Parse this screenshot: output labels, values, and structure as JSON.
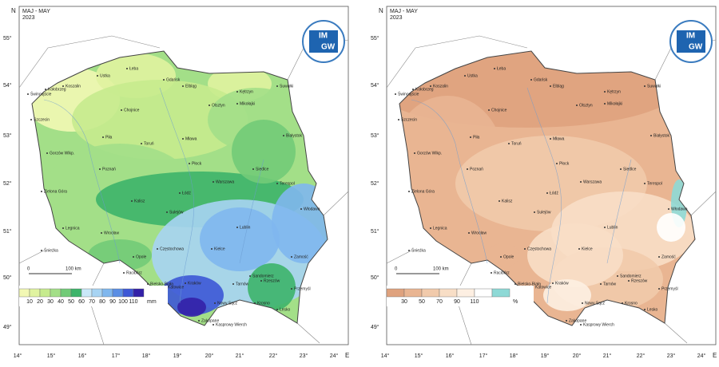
{
  "cities": [
    "Łeba",
    "Ustka",
    "Koszalin",
    "Kołobrzeg",
    "Świnoujście",
    "Szczecin",
    "Gdańsk",
    "Elbląg",
    "Kętrzyn",
    "Olsztyn",
    "Mikołajki",
    "Suwałki",
    "Chojnice",
    "Białystok",
    "Piła",
    "Toruń",
    "Mława",
    "Gorzów Wlkp.",
    "Poznań",
    "Płock",
    "Siedlce",
    "Zielona Góra",
    "Kalisz",
    "Łódź",
    "Warszawa",
    "Terespol",
    "Legnica",
    "Wrocław",
    "Sulejów",
    "Lublin",
    "Włodawa",
    "Opole",
    "Częstochowa",
    "Kielce",
    "Sandomierz",
    "Zamość",
    "Katowice",
    "Kraków",
    "Tarnów",
    "Rzeszów",
    "Przemyśl",
    "Krosno",
    "Lesko",
    "Nowy Sącz",
    "Zakopane",
    "Bielsko-Biała",
    "Kasprowy Wierch",
    "Racibórz",
    "Śnieżka"
  ],
  "lat_labels": [
    "55°",
    "54°",
    "53°",
    "52°",
    "51°",
    "50°",
    "49°"
  ],
  "lon_labels": [
    "14°",
    "15°",
    "16°",
    "17°",
    "18°",
    "19°",
    "20°",
    "21°",
    "22°",
    "23°",
    "24°"
  ],
  "north": "N",
  "east": "E",
  "logo": {
    "top": "IM",
    "bottom": "GW"
  },
  "scale": {
    "zero": "0",
    "length": "100 km"
  },
  "panels": [
    {
      "title": "MAJ - MAY",
      "year": "2023",
      "legend": {
        "labels": [
          "10",
          "20",
          "30",
          "40",
          "50",
          "60",
          "70",
          "80",
          "90",
          "100",
          "110"
        ],
        "unit": "mm",
        "colors": [
          "#f2f8b4",
          "#e0f3a0",
          "#c6eb8e",
          "#a3df88",
          "#72cb78",
          "#3db46a",
          "#c9e8f8",
          "#a7d4f3",
          "#7fb7ee",
          "#5a8ee4",
          "#3d58d6",
          "#3320a8"
        ]
      }
    },
    {
      "title": "MAJ - MAY",
      "year": "2023",
      "legend": {
        "labels": [
          "30",
          "50",
          "70",
          "90",
          "110"
        ],
        "unit": "%",
        "colors": [
          "#dfa27e",
          "#e9b592",
          "#f1caab",
          "#f8dec6",
          "#fdefe2",
          "#ffffff",
          "#8ed9d6"
        ]
      }
    }
  ]
}
